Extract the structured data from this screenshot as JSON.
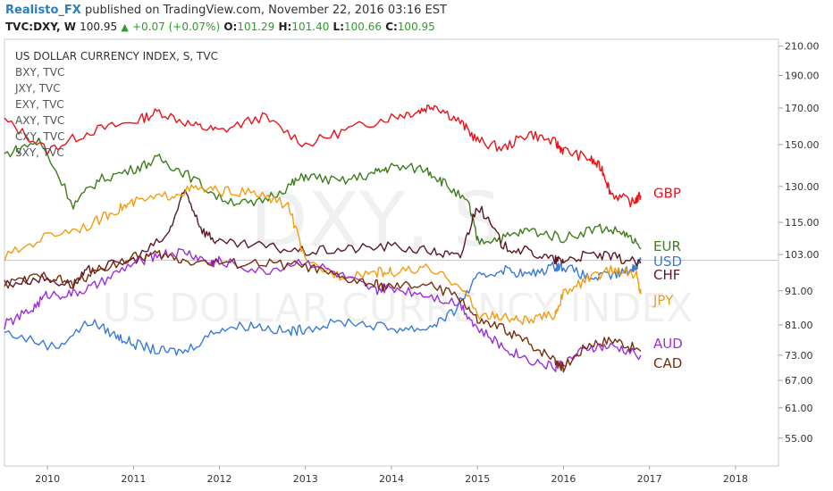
{
  "header": {
    "author": "Realisto_FX",
    "published_text": "published on TradingView.com, November 22, 2016 03:16 EST",
    "symbol": "TVC:DXY, W",
    "last": "100.95",
    "change": "+0.07 (+0.07%)",
    "open_label": "O:",
    "open": "101.29",
    "high_label": "H:",
    "high": "101.40",
    "low_label": "L:",
    "low": "100.66",
    "close_label": "C:",
    "close": "100.95"
  },
  "legend": {
    "main": "US DOLLAR CURRENCY INDEX, S, TVC",
    "items": [
      "BXY, TVC",
      "JXY, TVC",
      "EXY, TVC",
      "AXY, TVC",
      "CXY, TVC",
      "SXY, TVC"
    ]
  },
  "watermark": {
    "symbol": "DXY, S",
    "name": "US DOLLAR CURRENCY INDEX"
  },
  "colors": {
    "GBP": "#e8141a",
    "EUR": "#3e7d1e",
    "USD": "#3a7bd5",
    "CHF": "#5a1a24",
    "JPY": "#f39c12",
    "AUD": "#9b2fd8",
    "CAD": "#7a2e0c",
    "axis": "#9aa3ad",
    "text": "#333333"
  },
  "chart_data": {
    "type": "line",
    "y_scale": "log",
    "ylim": [
      50,
      215
    ],
    "xlim": [
      2009.5,
      2018.5
    ],
    "y_ticks": [
      "210.00",
      "190.00",
      "170.00",
      "150.00",
      "130.00",
      "115.00",
      "103.00",
      "91.00",
      "81.00",
      "73.00",
      "67.00",
      "61.00",
      "55.00"
    ],
    "x_ticks": [
      "2010",
      "2011",
      "2012",
      "2013",
      "2014",
      "2015",
      "2016",
      "2017",
      "2018"
    ],
    "x_ticks_values": [
      2010,
      2011,
      2012,
      2013,
      2014,
      2015,
      2016,
      2017,
      2018
    ],
    "reference_line": 101,
    "series": [
      {
        "name": "GBP",
        "points": [
          [
            2009.5,
            163
          ],
          [
            2010,
            147
          ],
          [
            2010.5,
            157
          ],
          [
            2011,
            162
          ],
          [
            2011.3,
            168
          ],
          [
            2011.7,
            160
          ],
          [
            2012,
            157
          ],
          [
            2012.5,
            165
          ],
          [
            2013,
            150
          ],
          [
            2013.5,
            158
          ],
          [
            2014,
            165
          ],
          [
            2014.3,
            168
          ],
          [
            2014.5,
            172
          ],
          [
            2014.8,
            162
          ],
          [
            2015,
            152
          ],
          [
            2015.3,
            148
          ],
          [
            2015.6,
            156
          ],
          [
            2015.9,
            151
          ],
          [
            2016,
            147
          ],
          [
            2016.3,
            143
          ],
          [
            2016.45,
            138
          ],
          [
            2016.55,
            127
          ],
          [
            2016.8,
            123
          ],
          [
            2016.9,
            126
          ]
        ]
      },
      {
        "name": "EUR",
        "points": [
          [
            2009.5,
            145
          ],
          [
            2009.9,
            152
          ],
          [
            2010.3,
            122
          ],
          [
            2010.6,
            133
          ],
          [
            2011,
            138
          ],
          [
            2011.3,
            143
          ],
          [
            2011.6,
            136
          ],
          [
            2012,
            125
          ],
          [
            2012.4,
            122
          ],
          [
            2012.8,
            130
          ],
          [
            2013,
            135
          ],
          [
            2013.4,
            132
          ],
          [
            2013.8,
            136
          ],
          [
            2014,
            139
          ],
          [
            2014.4,
            138
          ],
          [
            2014.6,
            132
          ],
          [
            2014.9,
            122
          ],
          [
            2015,
            108
          ],
          [
            2015.3,
            109
          ],
          [
            2015.6,
            112
          ],
          [
            2016,
            109
          ],
          [
            2016.4,
            113
          ],
          [
            2016.7,
            111
          ],
          [
            2016.9,
            105
          ]
        ]
      },
      {
        "name": "USD",
        "points": [
          [
            2009.5,
            79
          ],
          [
            2010.1,
            75
          ],
          [
            2010.5,
            82
          ],
          [
            2010.8,
            78
          ],
          [
            2011,
            76
          ],
          [
            2011.3,
            74
          ],
          [
            2011.6,
            74
          ],
          [
            2012,
            80
          ],
          [
            2012.4,
            81
          ],
          [
            2012.8,
            79
          ],
          [
            2013,
            80
          ],
          [
            2013.5,
            82
          ],
          [
            2014,
            80
          ],
          [
            2014.4,
            80
          ],
          [
            2014.7,
            84
          ],
          [
            2015,
            95
          ],
          [
            2015.3,
            98
          ],
          [
            2015.6,
            96
          ],
          [
            2015.9,
            99
          ],
          [
            2016,
            99
          ],
          [
            2016.3,
            95
          ],
          [
            2016.6,
            96
          ],
          [
            2016.8,
            98
          ],
          [
            2016.9,
            101
          ]
        ]
      },
      {
        "name": "CHF",
        "points": [
          [
            2009.5,
            93
          ],
          [
            2009.9,
            95
          ],
          [
            2010.3,
            93
          ],
          [
            2010.5,
            98
          ],
          [
            2011,
            101
          ],
          [
            2011.4,
            110
          ],
          [
            2011.6,
            128
          ],
          [
            2011.8,
            112
          ],
          [
            2012,
            107
          ],
          [
            2012.5,
            106
          ],
          [
            2013,
            104
          ],
          [
            2013.5,
            105
          ],
          [
            2014,
            106
          ],
          [
            2014.5,
            104
          ],
          [
            2014.8,
            102
          ],
          [
            2015,
            122
          ],
          [
            2015.3,
            106
          ],
          [
            2015.6,
            104
          ],
          [
            2015.9,
            101
          ],
          [
            2016,
            101
          ],
          [
            2016.3,
            103
          ],
          [
            2016.6,
            102
          ],
          [
            2016.9,
            100
          ]
        ]
      },
      {
        "name": "JPY",
        "points": [
          [
            2009.5,
            102
          ],
          [
            2010,
            110
          ],
          [
            2010.5,
            114
          ],
          [
            2010.8,
            120
          ],
          [
            2011,
            123
          ],
          [
            2011.4,
            126
          ],
          [
            2011.7,
            129
          ],
          [
            2012,
            128
          ],
          [
            2012.4,
            127
          ],
          [
            2012.8,
            122
          ],
          [
            2013,
            100
          ],
          [
            2013.4,
            96
          ],
          [
            2013.8,
            97
          ],
          [
            2014,
            97
          ],
          [
            2014.4,
            98
          ],
          [
            2014.8,
            93
          ],
          [
            2015,
            84
          ],
          [
            2015.3,
            83
          ],
          [
            2015.6,
            82
          ],
          [
            2015.9,
            84
          ],
          [
            2016,
            90
          ],
          [
            2016.3,
            95
          ],
          [
            2016.6,
            98
          ],
          [
            2016.85,
            96
          ],
          [
            2016.9,
            90
          ]
        ]
      },
      {
        "name": "AUD",
        "points": [
          [
            2009.5,
            81
          ],
          [
            2009.8,
            85
          ],
          [
            2010,
            90
          ],
          [
            2010.3,
            90
          ],
          [
            2010.6,
            93
          ],
          [
            2011,
            100
          ],
          [
            2011.3,
            103
          ],
          [
            2011.6,
            104
          ],
          [
            2011.9,
            100
          ],
          [
            2012,
            101
          ],
          [
            2012.5,
            97
          ],
          [
            2013,
            101
          ],
          [
            2013.4,
            96
          ],
          [
            2013.8,
            91
          ],
          [
            2014,
            92
          ],
          [
            2014.4,
            90
          ],
          [
            2014.8,
            87
          ],
          [
            2015,
            80
          ],
          [
            2015.3,
            75
          ],
          [
            2015.6,
            72
          ],
          [
            2015.9,
            70
          ],
          [
            2016,
            71
          ],
          [
            2016.3,
            75
          ],
          [
            2016.6,
            75
          ],
          [
            2016.9,
            73
          ]
        ]
      },
      {
        "name": "CAD",
        "points": [
          [
            2009.5,
            93
          ],
          [
            2010,
            96
          ],
          [
            2010.3,
            93
          ],
          [
            2010.6,
            98
          ],
          [
            2011,
            102
          ],
          [
            2011.3,
            103
          ],
          [
            2011.6,
            101
          ],
          [
            2012,
            100
          ],
          [
            2012.5,
            100
          ],
          [
            2013,
            99
          ],
          [
            2013.4,
            95
          ],
          [
            2013.8,
            93
          ],
          [
            2014,
            92
          ],
          [
            2014.4,
            93
          ],
          [
            2014.8,
            89
          ],
          [
            2015,
            82
          ],
          [
            2015.3,
            80
          ],
          [
            2015.6,
            76
          ],
          [
            2015.9,
            72
          ],
          [
            2016,
            70
          ],
          [
            2016.3,
            76
          ],
          [
            2016.6,
            77
          ],
          [
            2016.9,
            74
          ]
        ]
      }
    ],
    "series_labels": [
      {
        "name": "GBP",
        "y": 127
      },
      {
        "name": "EUR",
        "y": 106
      },
      {
        "name": "USD",
        "y": 100.5
      },
      {
        "name": "CHF",
        "y": 96
      },
      {
        "name": "JPY",
        "y": 88
      },
      {
        "name": "AUD",
        "y": 76
      },
      {
        "name": "CAD",
        "y": 71
      }
    ]
  }
}
